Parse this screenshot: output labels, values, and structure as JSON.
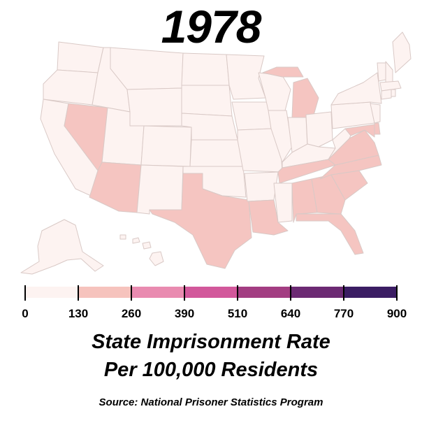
{
  "year": "1978",
  "legend": {
    "ticks": [
      "0",
      "130",
      "260",
      "390",
      "510",
      "640",
      "770",
      "900"
    ],
    "bin_colors": [
      "#fdf3f1",
      "#f6c3bd",
      "#e98bb0",
      "#d2589b",
      "#a33d82",
      "#6c2a73",
      "#3b1d63"
    ]
  },
  "colors": {
    "state_low": "#fdf3f1",
    "state_mid": "#f5c5c1",
    "border": "#d9c9c6"
  },
  "caption": {
    "line1": "State Imprisonment Rate",
    "line2": "Per 100,000 Residents"
  },
  "source": "Source: National Prisoner Statistics Program",
  "states_130_260": [
    "Nevada",
    "Arizona",
    "Texas",
    "Louisiana",
    "Michigan",
    "Tennessee",
    "North Carolina",
    "South Carolina",
    "Georgia",
    "Alabama",
    "Florida",
    "Virginia",
    "Maryland",
    "Delaware"
  ]
}
